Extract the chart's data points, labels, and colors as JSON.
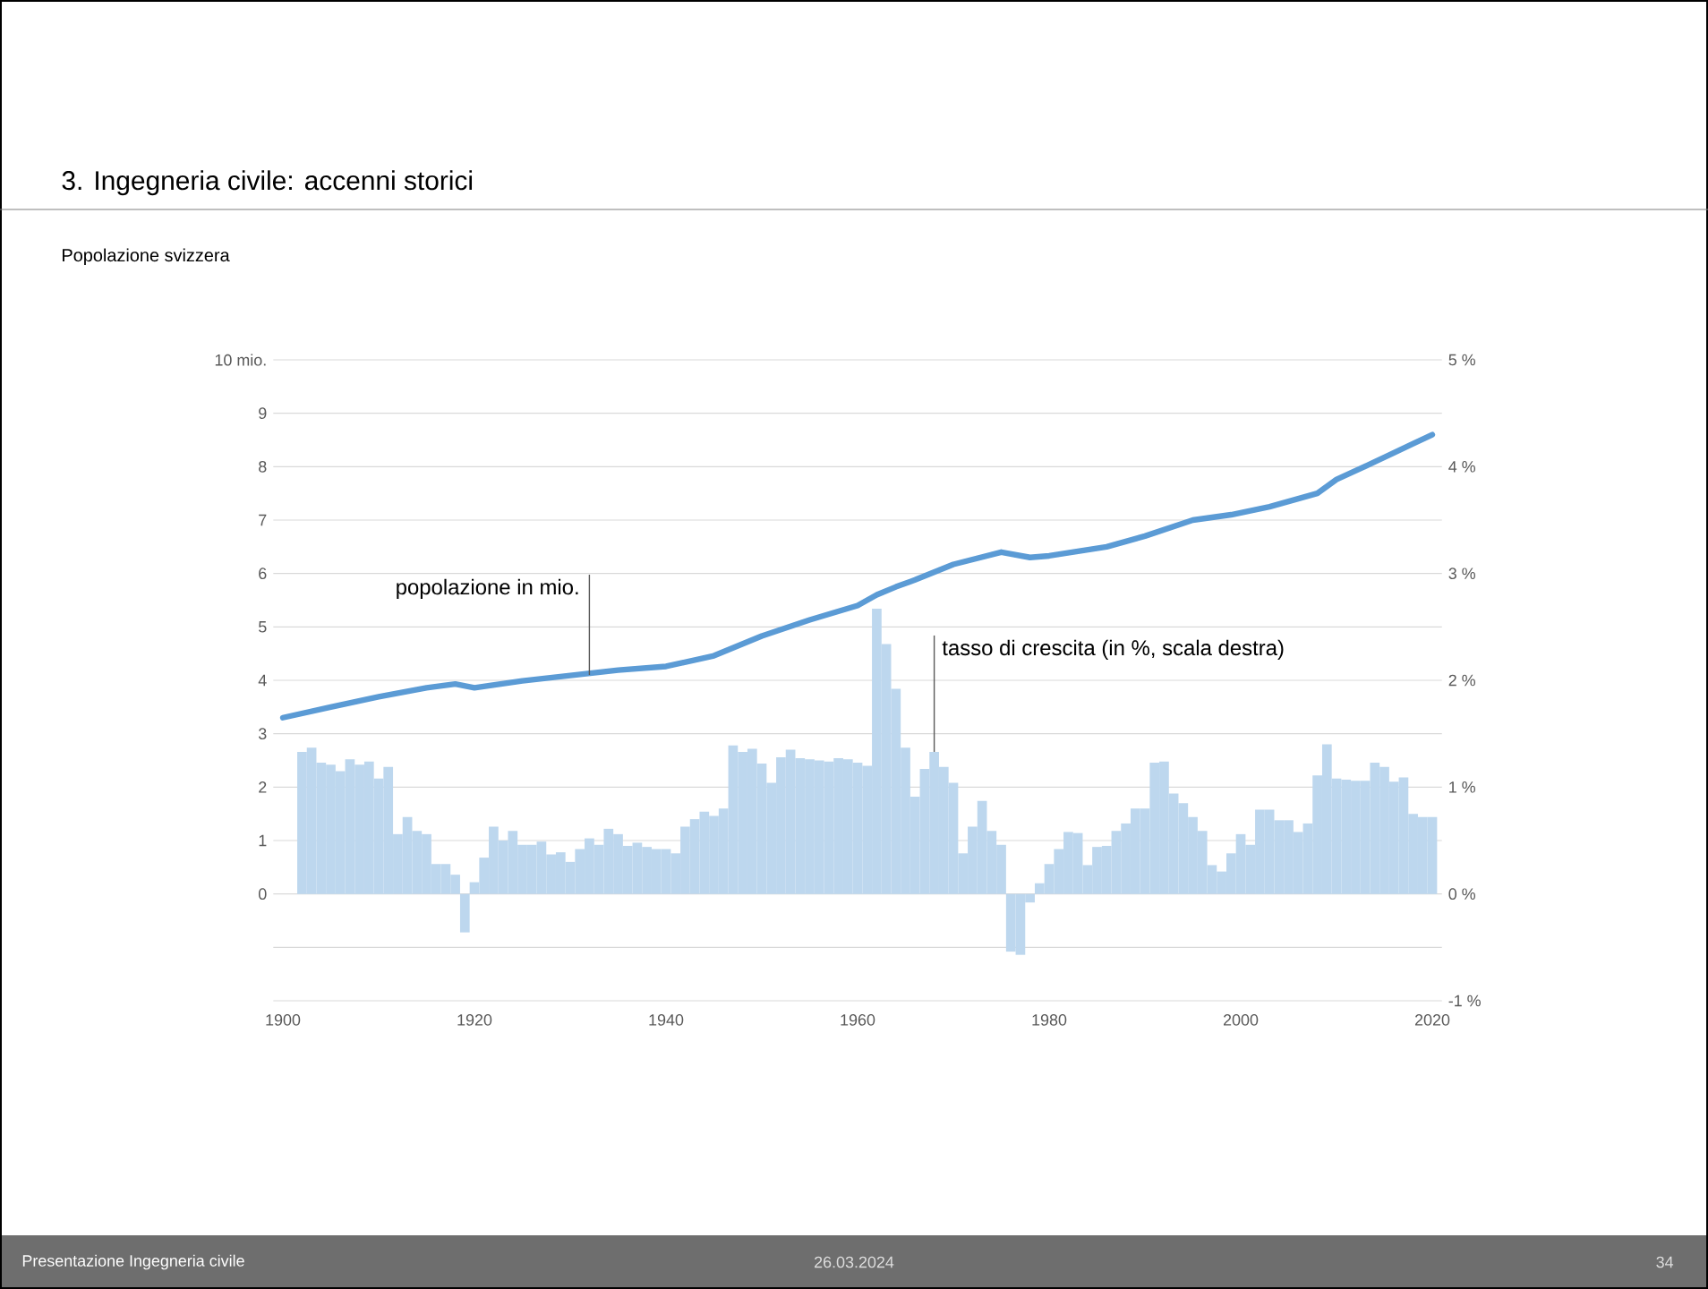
{
  "chart_data": {
    "type": "bar",
    "title": "3. Ingegneria civile: accenni storici",
    "subtitle": "Popolazione svizzera",
    "annotations": [
      {
        "text": "popolazione in mio.",
        "x": 1932,
        "y": 4.1
      },
      {
        "text": "tasso di crescita (in %, scala destra)",
        "x": 1968,
        "y": 2.66
      },
      "Presentazione Ingegneria civile",
      "26.03.2024",
      "34"
    ],
    "xlim": [
      1899,
      2021
    ],
    "xticks": [
      1900,
      1920,
      1940,
      1960,
      1980,
      2000,
      2020
    ],
    "ylim": [
      -2,
      10
    ],
    "yticks": [
      {
        "value": -2,
        "label": null
      },
      {
        "value": -1,
        "label": null
      },
      0,
      1,
      2,
      3,
      4,
      5,
      6,
      7,
      8,
      9,
      {
        "value": 10,
        "label": "10 mio."
      }
    ],
    "y2lim": [
      -1,
      5
    ],
    "y2ticks": [
      {
        "value": -1,
        "label": "-1 %"
      },
      {
        "value": 0,
        "label": "0 %"
      },
      {
        "value": 1,
        "label": "1 %"
      },
      {
        "value": 2,
        "label": "2 %"
      },
      {
        "value": 3,
        "label": "3 %"
      },
      {
        "value": 4,
        "label": "4 %"
      },
      {
        "value": 5,
        "label": "5 %"
      }
    ],
    "grid": "y",
    "series": [
      {
        "axis": "y2",
        "color": "#bdd7ee",
        "x": [
          1902,
          1903,
          1904,
          1905,
          1906,
          1907,
          1908,
          1909,
          1910,
          1911,
          1912,
          1913,
          1914,
          1915,
          1916,
          1917,
          1918,
          1919,
          1920,
          1921,
          1922,
          1923,
          1924,
          1925,
          1926,
          1927,
          1928,
          1929,
          1930,
          1931,
          1932,
          1933,
          1934,
          1935,
          1936,
          1937,
          1938,
          1939,
          1940,
          1941,
          1942,
          1943,
          1944,
          1945,
          1946,
          1947,
          1948,
          1949,
          1950,
          1951,
          1952,
          1953,
          1954,
          1955,
          1956,
          1957,
          1958,
          1959,
          1960,
          1961,
          1962,
          1963,
          1964,
          1965,
          1966,
          1967,
          1968,
          1969,
          1970,
          1971,
          1972,
          1973,
          1974,
          1975,
          1976,
          1977,
          1978,
          1979,
          1980,
          1981,
          1982,
          1983,
          1984,
          1985,
          1986,
          1987,
          1988,
          1989,
          1990,
          1991,
          1992,
          1993,
          1994,
          1995,
          1996,
          1997,
          1998,
          1999,
          2000,
          2001,
          2002,
          2003,
          2004,
          2005,
          2006,
          2007,
          2008,
          2009,
          2010,
          2011,
          2012,
          2013,
          2014,
          2015,
          2016,
          2017,
          2018,
          2019,
          2020
        ],
        "values": [
          1.33,
          1.37,
          1.23,
          1.21,
          1.15,
          1.26,
          1.21,
          1.24,
          1.08,
          1.19,
          0.56,
          0.72,
          0.59,
          0.56,
          0.28,
          0.28,
          0.18,
          -0.36,
          0.11,
          0.34,
          0.63,
          0.5,
          0.59,
          0.46,
          0.46,
          0.49,
          0.37,
          0.39,
          0.3,
          0.42,
          0.52,
          0.46,
          0.61,
          0.56,
          0.45,
          0.48,
          0.44,
          0.42,
          0.42,
          0.38,
          0.63,
          0.7,
          0.77,
          0.73,
          0.8,
          1.39,
          1.33,
          1.36,
          1.22,
          1.04,
          1.28,
          1.35,
          1.27,
          1.26,
          1.25,
          1.24,
          1.27,
          1.26,
          1.23,
          1.2,
          2.67,
          2.34,
          1.92,
          1.37,
          0.91,
          1.17,
          1.33,
          1.19,
          1.04,
          0.38,
          0.63,
          0.87,
          0.59,
          0.46,
          -0.54,
          -0.57,
          -0.08,
          0.1,
          0.28,
          0.42,
          0.58,
          0.57,
          0.27,
          0.44,
          0.45,
          0.59,
          0.66,
          0.8,
          0.8,
          1.23,
          1.24,
          0.94,
          0.85,
          0.72,
          0.59,
          0.27,
          0.21,
          0.38,
          0.56,
          0.46,
          0.79,
          0.79,
          0.69,
          0.69,
          0.58,
          0.66,
          1.11,
          1.4,
          1.08,
          1.07,
          1.06,
          1.06,
          1.23,
          1.19,
          1.05,
          1.09,
          0.75,
          0.72,
          0.72
        ]
      },
      {
        "type": "line",
        "axis": "y",
        "color": "#5b9bd5",
        "x": [
          1900,
          1905,
          1910,
          1915,
          1918,
          1920,
          1925,
          1930,
          1935,
          1940,
          1945,
          1950,
          1955,
          1960,
          1962,
          1964,
          1966,
          1970,
          1975,
          1978,
          1980,
          1986,
          1990,
          1995,
          1999,
          2003,
          2008,
          2010,
          2014,
          2018,
          2020
        ],
        "values": [
          3.3,
          3.5,
          3.69,
          3.86,
          3.93,
          3.86,
          3.99,
          4.09,
          4.19,
          4.26,
          4.46,
          4.83,
          5.13,
          5.4,
          5.6,
          5.75,
          5.88,
          6.17,
          6.4,
          6.3,
          6.33,
          6.5,
          6.7,
          7.0,
          7.1,
          7.25,
          7.5,
          7.76,
          8.09,
          8.43,
          8.6
        ]
      }
    ]
  }
}
